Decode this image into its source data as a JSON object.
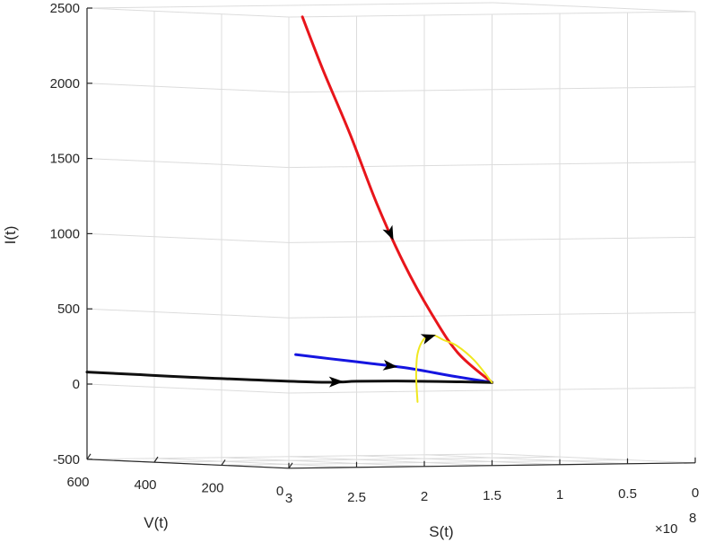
{
  "chart_data": {
    "type": "line",
    "projection": "3d",
    "xlabel": "S(t)",
    "ylabel": "V(t)",
    "zlabel": "I(t)",
    "x_multiplier": "×10",
    "x_multiplier_exponent": "8",
    "xlim": [
      0,
      3
    ],
    "ylim": [
      0,
      600
    ],
    "zlim": [
      -500,
      2500
    ],
    "x_ticks": [
      3,
      2.5,
      2,
      1.5,
      1,
      0.5,
      0
    ],
    "x_tick_labels": [
      "3",
      "2.5",
      "2",
      "1.5",
      "1",
      "0.5",
      "0"
    ],
    "y_ticks": [
      0,
      200,
      400,
      600
    ],
    "y_tick_labels": [
      "0",
      "200",
      "400",
      "600"
    ],
    "z_ticks": [
      2500,
      2000,
      1500,
      1000,
      500,
      0,
      -500
    ],
    "z_tick_labels": [
      "2500",
      "2000",
      "1500",
      "1000",
      "500",
      "0",
      "-500"
    ],
    "grid": true,
    "series": [
      {
        "color": "#e8151b",
        "points": [
          [
            2.9,
            0,
            2500
          ],
          [
            2.75,
            0,
            2150
          ],
          [
            2.55,
            0,
            1720
          ],
          [
            2.35,
            0,
            1250
          ],
          [
            2.15,
            0,
            850
          ],
          [
            1.95,
            0,
            520
          ],
          [
            1.75,
            0,
            250
          ],
          [
            1.5,
            0,
            52
          ]
        ]
      },
      {
        "color": "#1515e0",
        "points": [
          [
            2.95,
            0,
            255
          ],
          [
            2.7,
            0,
            225
          ],
          [
            2.4,
            0,
            190
          ],
          [
            2.1,
            0,
            152
          ],
          [
            1.8,
            0,
            100
          ],
          [
            1.5,
            0,
            52
          ]
        ]
      },
      {
        "color": "#101010",
        "points": [
          [
            3.0,
            600,
            80
          ],
          [
            3.0,
            450,
            78
          ],
          [
            3.0,
            300,
            76
          ],
          [
            2.8,
            0,
            70
          ],
          [
            2.5,
            0,
            72
          ],
          [
            2.2,
            0,
            70
          ],
          [
            1.9,
            0,
            64
          ],
          [
            1.5,
            0,
            52
          ]
        ]
      },
      {
        "color": "#f0e820",
        "points": [
          [
            2.05,
            0,
            -70
          ],
          [
            2.06,
            0,
            100
          ],
          [
            2.05,
            0,
            250
          ],
          [
            2.0,
            0,
            350
          ],
          [
            1.93,
            0,
            370
          ],
          [
            1.86,
            0,
            340
          ],
          [
            1.76,
            0,
            300
          ],
          [
            1.63,
            0,
            200
          ],
          [
            1.5,
            0,
            52
          ]
        ]
      }
    ]
  }
}
